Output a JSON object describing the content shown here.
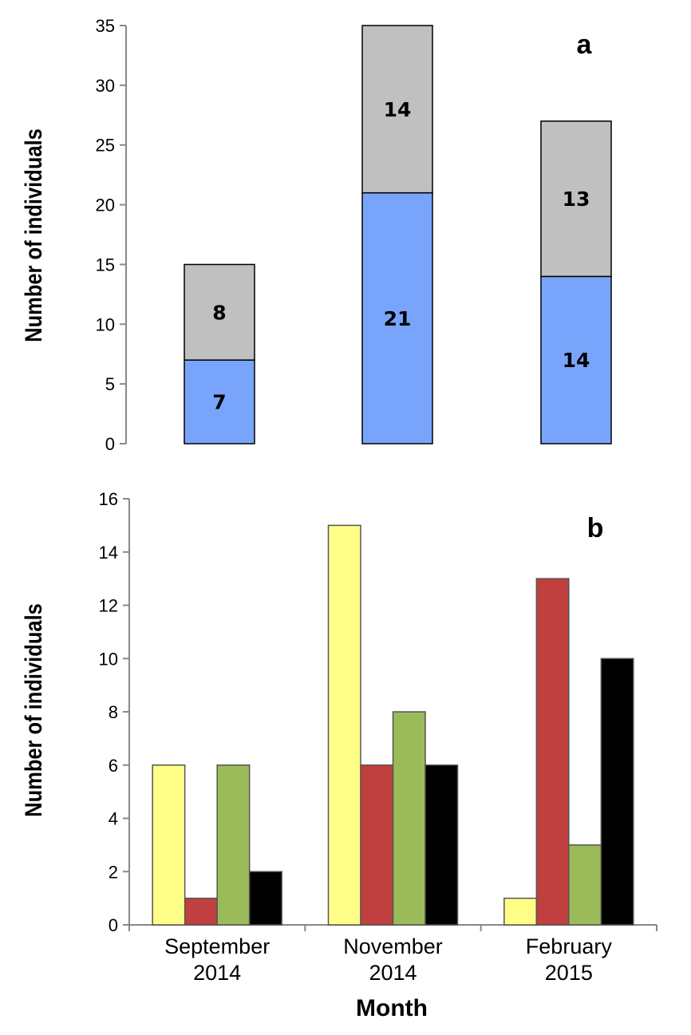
{
  "chart_data": [
    {
      "panel_label": "a",
      "type": "bar",
      "stacked": true,
      "categories": [
        "September 2014",
        "November 2014",
        "February 2015"
      ],
      "series": [
        {
          "values": [
            7,
            21,
            14
          ],
          "color": "#78a5fb"
        },
        {
          "values": [
            8,
            14,
            13
          ],
          "color": "#c0c0c0"
        }
      ],
      "data_labels": true,
      "ylabel": "Number of individuals",
      "ylim": [
        0,
        35
      ],
      "yticks": [
        0,
        5,
        10,
        15,
        20,
        25,
        30,
        35
      ],
      "grid": false,
      "legend": "none"
    },
    {
      "panel_label": "b",
      "type": "bar",
      "stacked": false,
      "categories": [
        "September\n2014",
        "November\n2014",
        "February\n2015"
      ],
      "series": [
        {
          "values": [
            6,
            15,
            1
          ],
          "color": "#ffff88"
        },
        {
          "values": [
            1,
            6,
            13
          ],
          "color": "#c0403f"
        },
        {
          "values": [
            6,
            8,
            3
          ],
          "color": "#9bbb59"
        },
        {
          "values": [
            2,
            6,
            10
          ],
          "color": "#000000"
        }
      ],
      "ylabel": "Number of individuals",
      "xlabel": "Month",
      "ylim": [
        0,
        16
      ],
      "yticks": [
        0,
        2,
        4,
        6,
        8,
        10,
        12,
        14,
        16
      ],
      "grid": false,
      "legend": "none"
    }
  ]
}
